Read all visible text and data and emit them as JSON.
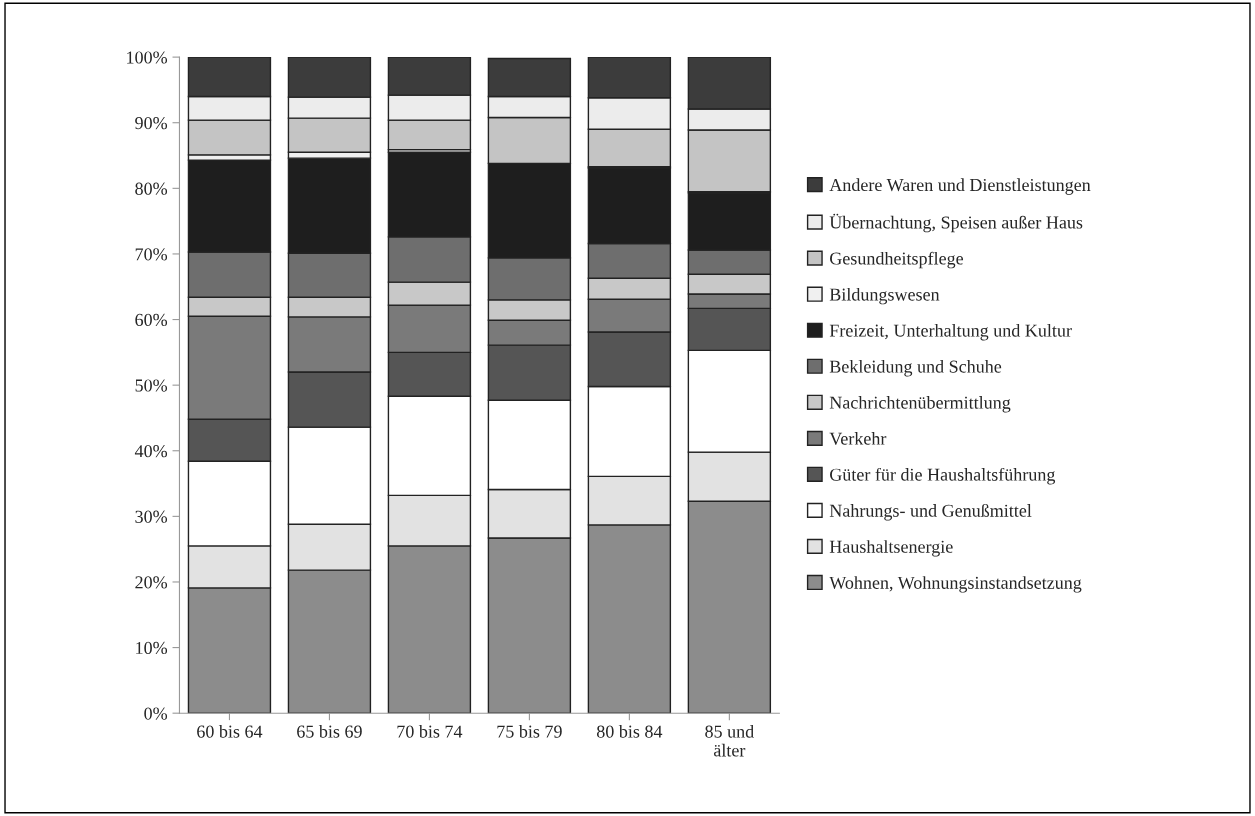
{
  "chart_data": {
    "type": "bar",
    "stacked": true,
    "categories": [
      "60 bis 64",
      "65 bis 69",
      "70 bis 74",
      "75 bis 79",
      "80 bis 84",
      "85 und\nälter"
    ],
    "ylim": [
      0,
      100
    ],
    "yticks": [
      {
        "value": 0,
        "label": "0%"
      },
      {
        "value": 10,
        "label": "10%"
      },
      {
        "value": 20,
        "label": "20%"
      },
      {
        "value": 30,
        "label": "30%"
      },
      {
        "value": 40,
        "label": "40%"
      },
      {
        "value": 50,
        "label": "50%"
      },
      {
        "value": 60,
        "label": "60%"
      },
      {
        "value": 70,
        "label": "70%"
      },
      {
        "value": 80,
        "label": "80%"
      },
      {
        "value": 90,
        "label": "90%"
      },
      {
        "value": 100,
        "label": "100%"
      }
    ],
    "grid": false,
    "legend": "right",
    "series": [
      {
        "name": "Wohnen, Wohnungsinstandsetzung",
        "color": "#8c8c8c",
        "values": [
          19.1,
          21.8,
          25.5,
          26.7,
          28.7,
          32.3
        ]
      },
      {
        "name": "Haushaltsenergie",
        "color": "#e2e2e2",
        "values": [
          6.4,
          7.0,
          7.7,
          7.4,
          7.4,
          7.5
        ]
      },
      {
        "name": "Nahrungs- und Genußmittel",
        "color": "#ffffff",
        "values": [
          12.9,
          14.8,
          15.1,
          13.6,
          13.7,
          15.5
        ]
      },
      {
        "name": "Güter für die Haushaltsführung",
        "color": "#555555",
        "values": [
          6.4,
          8.4,
          6.7,
          8.4,
          8.3,
          6.4
        ]
      },
      {
        "name": "Verkehr",
        "color": "#7a7a7a",
        "values": [
          15.7,
          8.4,
          7.2,
          3.8,
          5.0,
          2.2
        ]
      },
      {
        "name": "Nachrichtenübermittlung",
        "color": "#c8c8c8",
        "values": [
          2.9,
          3.0,
          3.5,
          3.1,
          3.2,
          3.0
        ]
      },
      {
        "name": "Bekleidung und Schuhe",
        "color": "#6e6e6e",
        "values": [
          6.9,
          6.7,
          6.9,
          6.4,
          5.3,
          3.7
        ]
      },
      {
        "name": "Freizeit, Unterhaltung und Kultur",
        "color": "#1e1e1e",
        "values": [
          14.0,
          14.5,
          12.9,
          14.4,
          11.5,
          8.7
        ]
      },
      {
        "name": "Bildungswesen",
        "color": "#f0f0f0",
        "values": [
          0.8,
          0.9,
          0.4,
          null,
          0.2,
          0.2
        ]
      },
      {
        "name": "Gesundheitspflege",
        "color": "#c4c4c4",
        "values": [
          5.3,
          5.2,
          4.5,
          7.0,
          5.7,
          9.4
        ]
      },
      {
        "name": "Übernachtung, Speisen außer Haus",
        "color": "#ececec",
        "values": [
          3.6,
          3.2,
          3.8,
          3.2,
          4.8,
          3.2
        ]
      },
      {
        "name": "Andere Waren und Dienstleistungen",
        "color": "#3c3c3c",
        "values": [
          6.0,
          6.1,
          5.8,
          5.8,
          6.2,
          7.9
        ]
      }
    ]
  }
}
